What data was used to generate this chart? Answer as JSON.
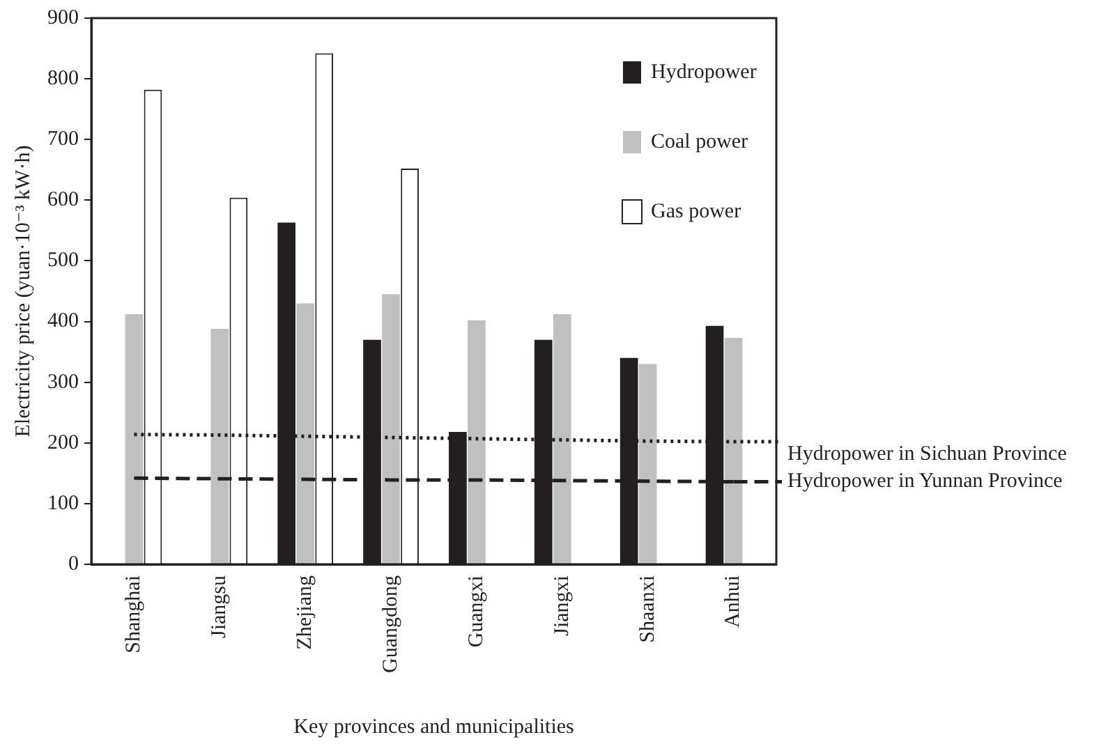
{
  "chart_data": {
    "type": "bar",
    "xlabel": "Key provinces and municipalities",
    "ylabel": "Electricity price (yuan·10⁻³ kW·h)",
    "categories": [
      "Shanghai",
      "Jiangsu",
      "Zhejiang",
      "Guangdong",
      "Guangxi",
      "Jiangxi",
      "Shaanxi",
      "Anhui"
    ],
    "series": [
      {
        "name": "Hydropower",
        "color": "#231f20",
        "values": [
          null,
          null,
          563,
          370,
          218,
          370,
          340,
          393
        ]
      },
      {
        "name": "Coal power",
        "color": "#c0c0c0",
        "values": [
          412,
          388,
          430,
          445,
          402,
          412,
          330,
          373
        ]
      },
      {
        "name": "Gas power",
        "color": "#ffffff",
        "values": [
          782,
          604,
          842,
          652,
          null,
          null,
          null,
          null
        ]
      },
      {
        "name": "Hydropower in Sichuan Province",
        "type": "line",
        "line_style": "dotted",
        "color": "#231f20",
        "values": [
          214,
          213,
          211,
          209,
          207,
          205,
          203,
          202
        ]
      },
      {
        "name": "Hydropower in Yunnan Province",
        "type": "line",
        "line_style": "dashed",
        "color": "#231f20",
        "values": [
          142,
          141,
          140,
          139,
          139,
          138,
          137,
          136
        ]
      }
    ],
    "ylim": [
      0,
      900
    ],
    "yticks": [
      0,
      100,
      200,
      300,
      400,
      500,
      600,
      700,
      800,
      900
    ],
    "grid": false,
    "legend": "top right",
    "marker": "none"
  }
}
